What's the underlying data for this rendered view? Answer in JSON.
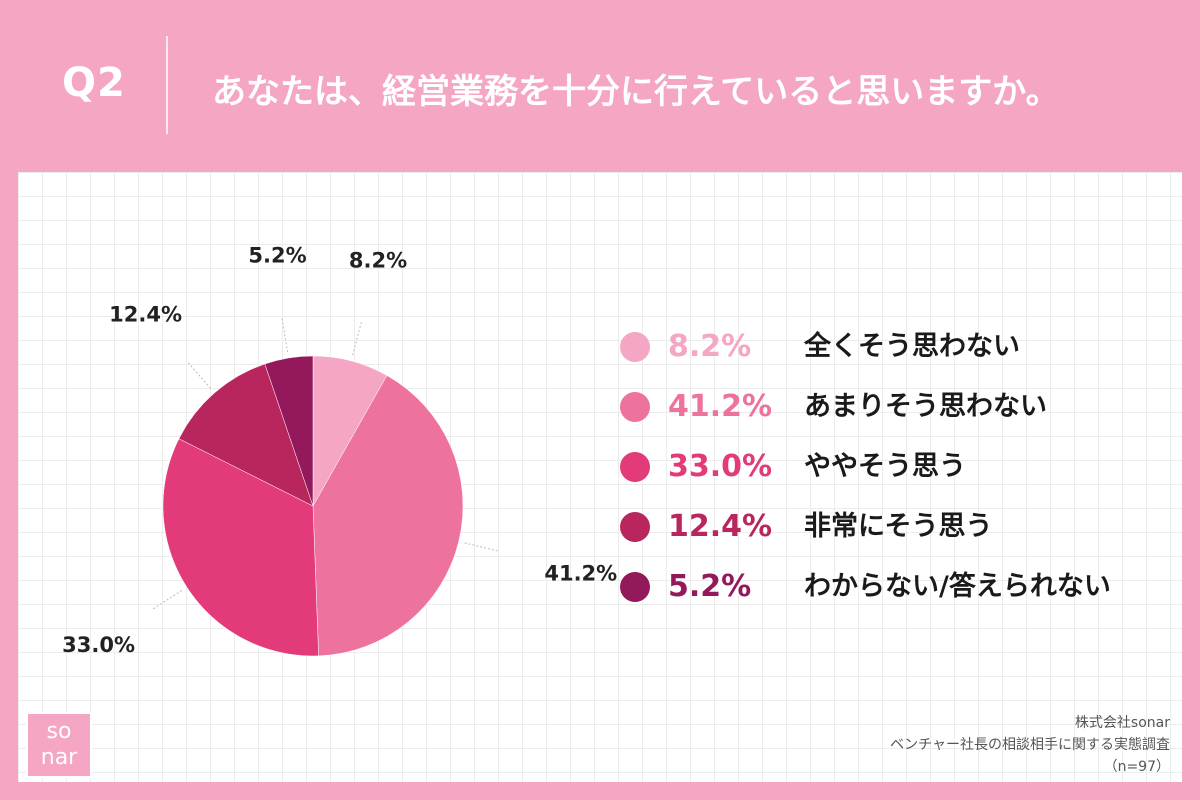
{
  "header": {
    "question_number": "Q2",
    "title": "あなたは、経営業務を十分に行えていると思いますか。"
  },
  "chart_data": {
    "type": "pie",
    "start": "12 o'clock",
    "direction": "clockwise",
    "slices": [
      {
        "label": "全くそう思わない",
        "value": 8.2,
        "display": "8.2%",
        "color": "#f4a6c4"
      },
      {
        "label": "あまりそう思わない",
        "value": 41.2,
        "display": "41.2%",
        "color": "#ee729e"
      },
      {
        "label": "ややそう思う",
        "value": 33.0,
        "display": "33.0%",
        "color": "#e33a79"
      },
      {
        "label": "非常にそう思う",
        "value": 12.4,
        "display": "12.4%",
        "color": "#b8265d"
      },
      {
        "label": "わからない/答えられない",
        "value": 5.2,
        "display": "5.2%",
        "color": "#93185c"
      }
    ]
  },
  "logo": {
    "line1": "so",
    "line2": "nar"
  },
  "footer": {
    "company": "株式会社sonar",
    "survey": "ベンチャー社長の相談相手に関する実態調査",
    "sample": "（n=97）"
  },
  "colors": {
    "background": "#f4a6c4",
    "panel": "#ffffff"
  }
}
